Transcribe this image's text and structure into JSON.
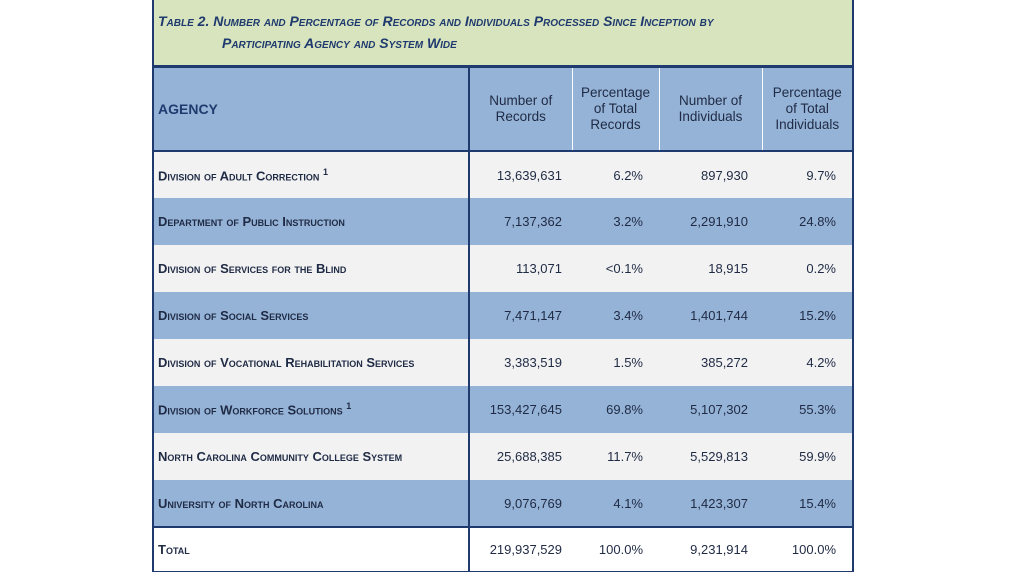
{
  "caption": {
    "line1": "Table 2. Number and Percentage of Records and Individuals Processed Since Inception by",
    "line2": "Participating Agency and System Wide"
  },
  "headers": {
    "agency": "AGENCY",
    "records": "Number of Records",
    "pct_records": "Percentage of Total Records",
    "individuals": "Number of Individuals",
    "pct_individuals": "Percentage of Total Individuals"
  },
  "rows": [
    {
      "agency": "Division of Adult Correction",
      "sup": "1",
      "records": "13,639,631",
      "pct_records": "6.2%",
      "individuals": "897,930",
      "pct_individuals": "9.7%"
    },
    {
      "agency": "Department of Public Instruction",
      "sup": "",
      "records": "7,137,362",
      "pct_records": "3.2%",
      "individuals": "2,291,910",
      "pct_individuals": "24.8%"
    },
    {
      "agency": "Division of Services for the Blind",
      "sup": "",
      "records": "113,071",
      "pct_records": "<0.1%",
      "individuals": "18,915",
      "pct_individuals": "0.2%"
    },
    {
      "agency": "Division of Social Services",
      "sup": "",
      "records": "7,471,147",
      "pct_records": "3.4%",
      "individuals": "1,401,744",
      "pct_individuals": "15.2%"
    },
    {
      "agency": "Division of Vocational Rehabilitation Services",
      "sup": "",
      "records": "3,383,519",
      "pct_records": "1.5%",
      "individuals": "385,272",
      "pct_individuals": "4.2%"
    },
    {
      "agency": "Division of Workforce Solutions",
      "sup": "1",
      "records": "153,427,645",
      "pct_records": "69.8%",
      "individuals": "5,107,302",
      "pct_individuals": "55.3%"
    },
    {
      "agency": "North Carolina Community College System",
      "sup": "",
      "records": "25,688,385",
      "pct_records": "11.7%",
      "individuals": "5,529,813",
      "pct_individuals": "59.9%"
    },
    {
      "agency": "University of North Carolina",
      "sup": "",
      "records": "9,076,769",
      "pct_records": "4.1%",
      "individuals": "1,423,307",
      "pct_individuals": "15.4%"
    }
  ],
  "total": {
    "agency": "Total",
    "records": "219,937,529",
    "pct_records": "100.0%",
    "individuals": "9,231,914",
    "pct_individuals": "100.0%"
  },
  "colors": {
    "caption_bg": "#d7e4bd",
    "header_bg": "#95b3d7",
    "row_light": "#f2f2f2",
    "row_blue": "#95b3d7",
    "border": "#1f3a6e"
  }
}
